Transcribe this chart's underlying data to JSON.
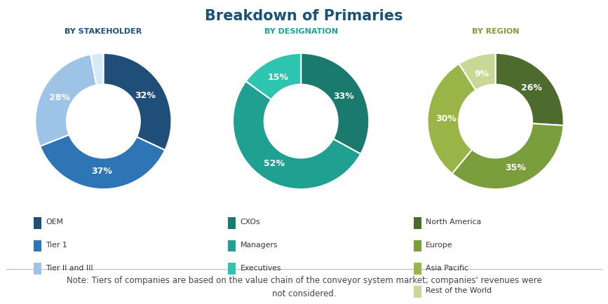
{
  "title": "Breakdown of Primaries",
  "title_color": "#1a5276",
  "title_fontsize": 15,
  "chart1_label": "BY STAKEHOLDER",
  "chart1_values": [
    32,
    37,
    28,
    3
  ],
  "chart1_colors": [
    "#1f4e79",
    "#2e75b6",
    "#9dc3e6",
    "#d6e9f8"
  ],
  "chart1_pct_labels": [
    "32%",
    "37%",
    "28%",
    ""
  ],
  "chart1_legend": [
    "OEM",
    "Tier 1",
    "Tier II and III"
  ],
  "chart1_legend_colors": [
    "#1f4e79",
    "#2e75b6",
    "#9dc3e6"
  ],
  "chart2_label": "BY DESIGNATION",
  "chart2_values": [
    33,
    52,
    15
  ],
  "chart2_colors": [
    "#1a7a6e",
    "#20a090",
    "#2dc4b0"
  ],
  "chart2_pct_labels": [
    "33%",
    "52%",
    "15%"
  ],
  "chart2_legend": [
    "CXOs",
    "Managers",
    "Executives"
  ],
  "chart2_legend_colors": [
    "#1a7a6e",
    "#20a090",
    "#2dc4b0"
  ],
  "chart3_label": "BY REGION",
  "chart3_values": [
    26,
    35,
    30,
    9
  ],
  "chart3_colors": [
    "#4e6b2e",
    "#7a9e3b",
    "#9ab547",
    "#c8d896"
  ],
  "chart3_pct_labels": [
    "26%",
    "35%",
    "30%",
    "9%"
  ],
  "chart3_legend": [
    "North America",
    "Europe",
    "Asia Pacific",
    "Rest of the World"
  ],
  "chart3_legend_colors": [
    "#4e6b2e",
    "#7a9e3b",
    "#9ab547",
    "#c8d896"
  ],
  "note_text": "Note: Tiers of companies are based on the value chain of the conveyor system market; companies' revenues were\nnot considered.",
  "note_fontsize": 8.5,
  "subtitle_color_1": "#1f4e79",
  "subtitle_color_2": "#20a090",
  "subtitle_color_3": "#7a9e3b"
}
